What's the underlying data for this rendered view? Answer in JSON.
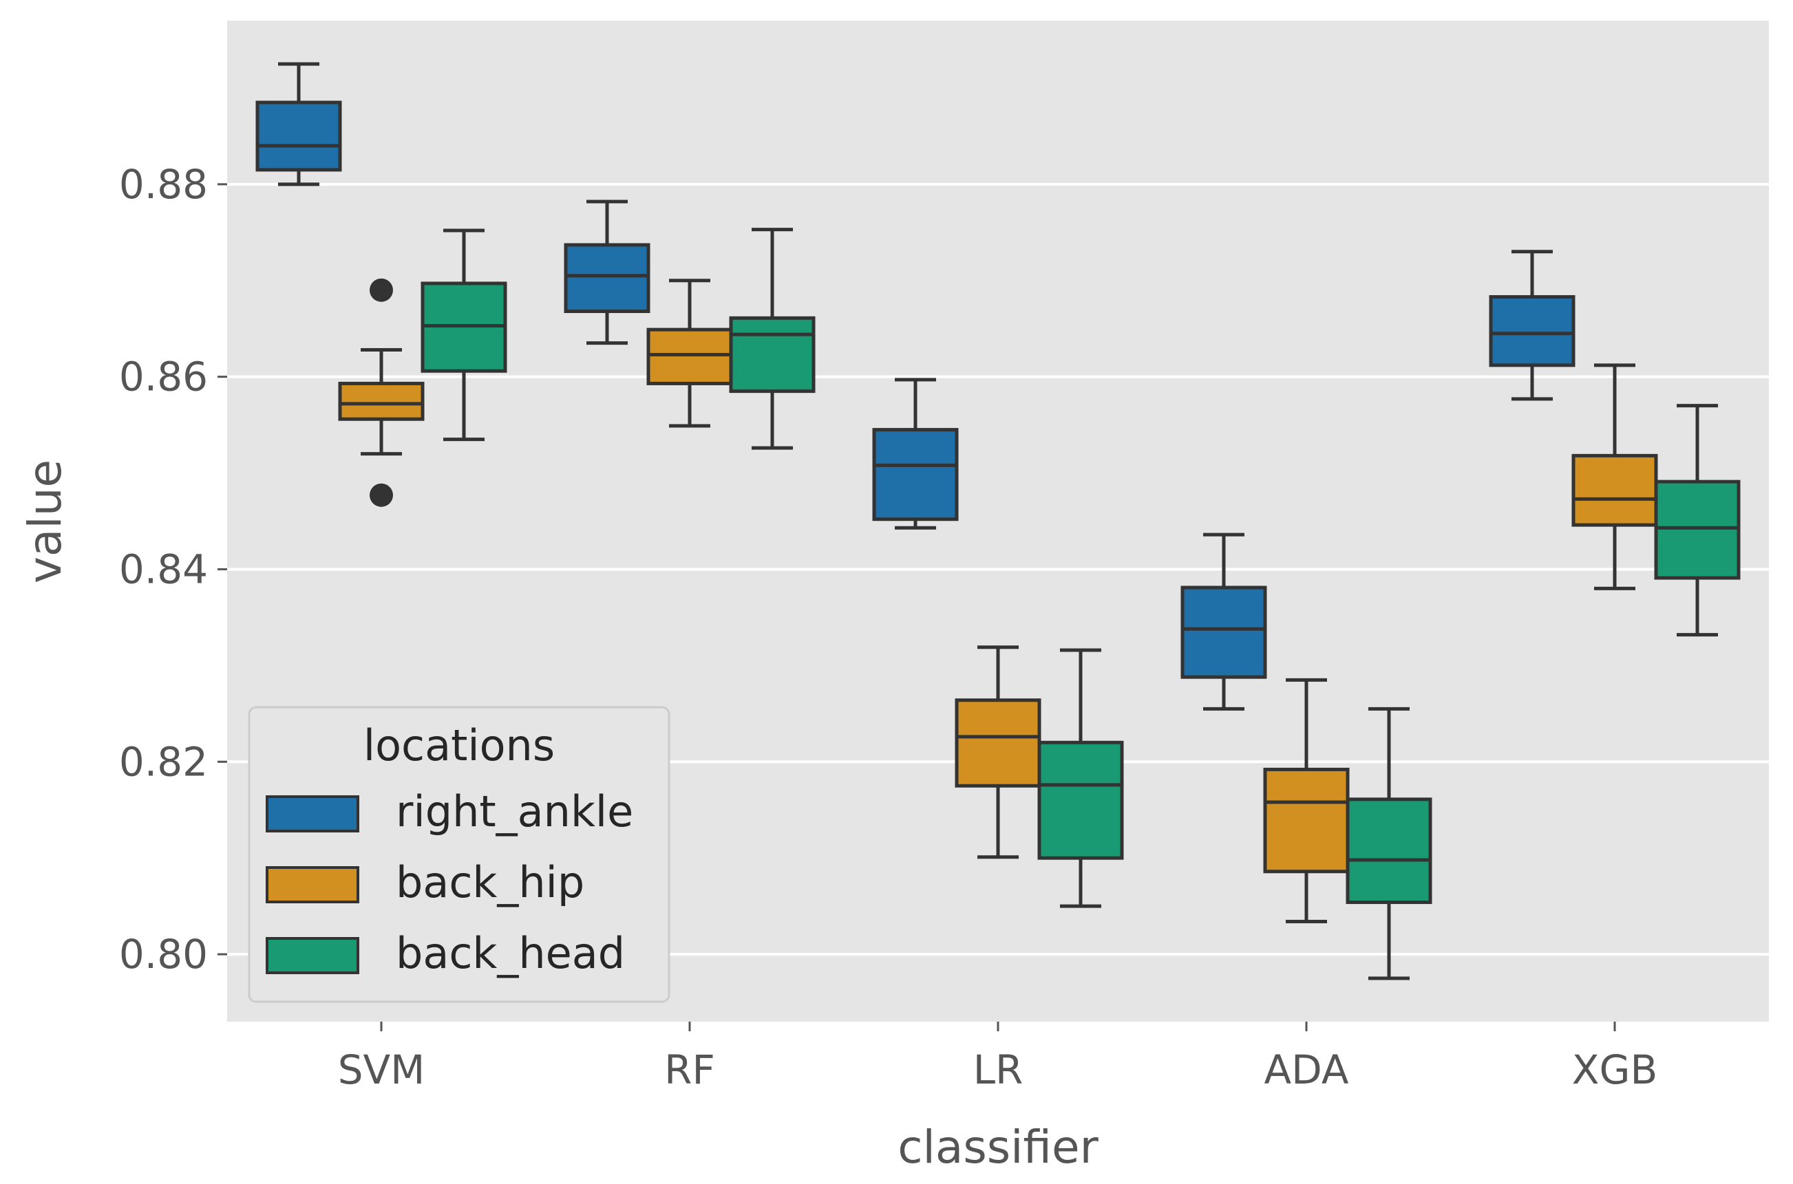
{
  "chart_data": {
    "type": "box",
    "title": "",
    "xlabel": "classifier",
    "ylabel": "value",
    "categories": [
      "SVM",
      "RF",
      "LR",
      "ADA",
      "XGB"
    ],
    "ylim": [
      0.793,
      0.897
    ],
    "yticks": [
      0.8,
      0.82,
      0.84,
      0.86,
      0.88
    ],
    "ytick_labels": [
      "0.80",
      "0.82",
      "0.84",
      "0.86",
      "0.88"
    ],
    "grid": true,
    "legend": {
      "title": "locations",
      "position": "lower-left"
    },
    "series": [
      {
        "name": "right_ankle",
        "color": "#1f6fa8",
        "boxes": [
          {
            "whislo": 0.88,
            "q1": 0.8815,
            "med": 0.884,
            "q3": 0.8885,
            "whishi": 0.8925,
            "fliers": []
          },
          {
            "whislo": 0.8635,
            "q1": 0.8668,
            "med": 0.8705,
            "q3": 0.8737,
            "whishi": 0.8782,
            "fliers": []
          },
          {
            "whislo": 0.8443,
            "q1": 0.8452,
            "med": 0.8508,
            "q3": 0.8545,
            "whishi": 0.8597,
            "fliers": []
          },
          {
            "whislo": 0.8255,
            "q1": 0.8288,
            "med": 0.8338,
            "q3": 0.8381,
            "whishi": 0.8436,
            "fliers": []
          },
          {
            "whislo": 0.8577,
            "q1": 0.8612,
            "med": 0.8645,
            "q3": 0.8683,
            "whishi": 0.873,
            "fliers": []
          }
        ]
      },
      {
        "name": "back_hip",
        "color": "#d1901f",
        "boxes": [
          {
            "whislo": 0.852,
            "q1": 0.8556,
            "med": 0.8572,
            "q3": 0.8593,
            "whishi": 0.8628,
            "fliers": [
              0.869,
              0.8477
            ]
          },
          {
            "whislo": 0.8549,
            "q1": 0.8593,
            "med": 0.8623,
            "q3": 0.8649,
            "whishi": 0.87,
            "fliers": []
          },
          {
            "whislo": 0.8101,
            "q1": 0.8175,
            "med": 0.8226,
            "q3": 0.8264,
            "whishi": 0.8319,
            "fliers": []
          },
          {
            "whislo": 0.8034,
            "q1": 0.8086,
            "med": 0.8158,
            "q3": 0.8192,
            "whishi": 0.8285,
            "fliers": []
          },
          {
            "whislo": 0.838,
            "q1": 0.8446,
            "med": 0.8473,
            "q3": 0.8518,
            "whishi": 0.8612,
            "fliers": []
          }
        ]
      },
      {
        "name": "back_head",
        "color": "#1a9a72",
        "boxes": [
          {
            "whislo": 0.8535,
            "q1": 0.8606,
            "med": 0.8653,
            "q3": 0.8697,
            "whishi": 0.8752,
            "fliers": []
          },
          {
            "whislo": 0.8526,
            "q1": 0.8585,
            "med": 0.8644,
            "q3": 0.8661,
            "whishi": 0.8753,
            "fliers": []
          },
          {
            "whislo": 0.805,
            "q1": 0.81,
            "med": 0.8176,
            "q3": 0.822,
            "whishi": 0.8316,
            "fliers": []
          },
          {
            "whislo": 0.7975,
            "q1": 0.8054,
            "med": 0.8098,
            "q3": 0.8161,
            "whishi": 0.8255,
            "fliers": []
          },
          {
            "whislo": 0.8332,
            "q1": 0.8391,
            "med": 0.8443,
            "q3": 0.8491,
            "whishi": 0.857,
            "fliers": []
          }
        ]
      }
    ]
  }
}
